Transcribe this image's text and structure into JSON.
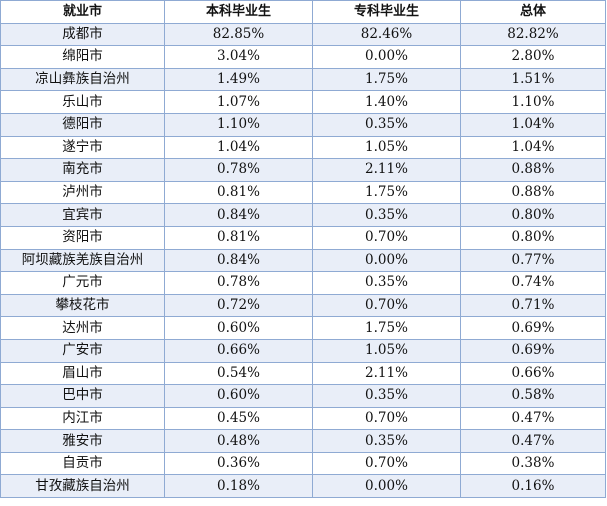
{
  "table": {
    "headers": [
      "就业市",
      "本科毕业生",
      "专科毕业生",
      "总体"
    ],
    "rows": [
      [
        "成都市",
        "82.85%",
        "82.46%",
        "82.82%"
      ],
      [
        "绵阳市",
        "3.04%",
        "0.00%",
        "2.80%"
      ],
      [
        "凉山彝族自治州",
        "1.49%",
        "1.75%",
        "1.51%"
      ],
      [
        "乐山市",
        "1.07%",
        "1.40%",
        "1.10%"
      ],
      [
        "德阳市",
        "1.10%",
        "0.35%",
        "1.04%"
      ],
      [
        "遂宁市",
        "1.04%",
        "1.05%",
        "1.04%"
      ],
      [
        "南充市",
        "0.78%",
        "2.11%",
        "0.88%"
      ],
      [
        "泸州市",
        "0.81%",
        "1.75%",
        "0.88%"
      ],
      [
        "宜宾市",
        "0.84%",
        "0.35%",
        "0.80%"
      ],
      [
        "资阳市",
        "0.81%",
        "0.70%",
        "0.80%"
      ],
      [
        "阿坝藏族羌族自治州",
        "0.84%",
        "0.00%",
        "0.77%"
      ],
      [
        "广元市",
        "0.78%",
        "0.35%",
        "0.74%"
      ],
      [
        "攀枝花市",
        "0.72%",
        "0.70%",
        "0.71%"
      ],
      [
        "达州市",
        "0.60%",
        "1.75%",
        "0.69%"
      ],
      [
        "广安市",
        "0.66%",
        "1.05%",
        "0.69%"
      ],
      [
        "眉山市",
        "0.54%",
        "2.11%",
        "0.66%"
      ],
      [
        "巴中市",
        "0.60%",
        "0.35%",
        "0.58%"
      ],
      [
        "内江市",
        "0.45%",
        "0.70%",
        "0.47%"
      ],
      [
        "雅安市",
        "0.48%",
        "0.35%",
        "0.47%"
      ],
      [
        "自贡市",
        "0.36%",
        "0.70%",
        "0.38%"
      ],
      [
        "甘孜藏族自治州",
        "0.18%",
        "0.00%",
        "0.16%"
      ]
    ]
  },
  "colors": {
    "border": "#8faad3",
    "stripe": "#e9eef8",
    "text": "#111111"
  }
}
